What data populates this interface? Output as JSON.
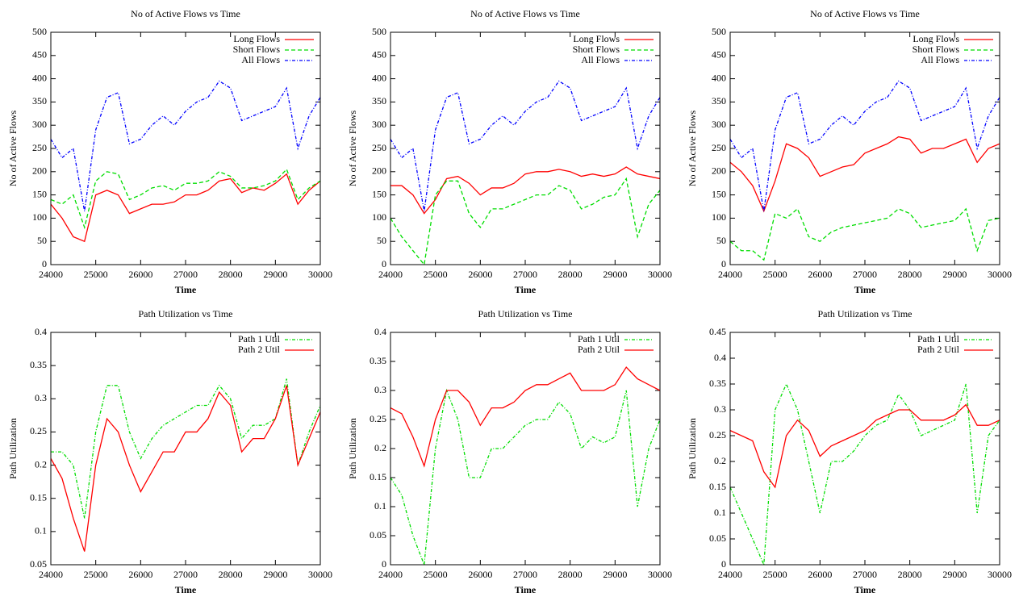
{
  "chart_data": [
    {
      "type": "line",
      "title": "No of Active Flows vs Time",
      "xlabel": "Time",
      "ylabel": "No of Active Flows",
      "x": [
        24000,
        24250,
        24500,
        24750,
        25000,
        25250,
        25500,
        25750,
        26000,
        26250,
        26500,
        26750,
        27000,
        27250,
        27500,
        27750,
        28000,
        28250,
        28500,
        28750,
        29000,
        29250,
        29500,
        29750,
        30000
      ],
      "xlim": [
        24000,
        30000
      ],
      "xticks": [
        24000,
        25000,
        26000,
        27000,
        28000,
        29000,
        30000
      ],
      "ylim": [
        0,
        500
      ],
      "yticks": [
        0,
        50,
        100,
        150,
        200,
        250,
        300,
        350,
        400,
        450,
        500
      ],
      "legend": "upper right",
      "series": [
        {
          "name": "Long Flows",
          "color": "#ff0000",
          "dash": "solid",
          "values": [
            130,
            100,
            60,
            50,
            150,
            160,
            150,
            110,
            120,
            130,
            130,
            135,
            150,
            150,
            160,
            180,
            185,
            155,
            165,
            160,
            175,
            195,
            130,
            160,
            180
          ]
        },
        {
          "name": "Short Flows",
          "color": "#00dd00",
          "dash": "dashed",
          "values": [
            140,
            130,
            150,
            80,
            180,
            200,
            195,
            140,
            150,
            165,
            170,
            160,
            175,
            175,
            180,
            200,
            190,
            165,
            165,
            170,
            180,
            205,
            140,
            165,
            180
          ]
        },
        {
          "name": "All Flows",
          "color": "#0000ff",
          "dash": "dashdot",
          "values": [
            270,
            230,
            250,
            115,
            290,
            360,
            370,
            260,
            270,
            300,
            320,
            300,
            330,
            350,
            360,
            395,
            380,
            310,
            320,
            330,
            340,
            380,
            250,
            320,
            360
          ]
        }
      ]
    },
    {
      "type": "line",
      "title": "No of Active Flows vs Time",
      "xlabel": "Time",
      "ylabel": "No of Active Flows",
      "x": [
        24000,
        24250,
        24500,
        24750,
        25000,
        25250,
        25500,
        25750,
        26000,
        26250,
        26500,
        26750,
        27000,
        27250,
        27500,
        27750,
        28000,
        28250,
        28500,
        28750,
        29000,
        29250,
        29500,
        29750,
        30000
      ],
      "xlim": [
        24000,
        30000
      ],
      "xticks": [
        24000,
        25000,
        26000,
        27000,
        28000,
        29000,
        30000
      ],
      "ylim": [
        0,
        500
      ],
      "yticks": [
        0,
        50,
        100,
        150,
        200,
        250,
        300,
        350,
        400,
        450,
        500
      ],
      "legend": "upper right",
      "series": [
        {
          "name": "Long Flows",
          "color": "#ff0000",
          "dash": "solid",
          "values": [
            170,
            170,
            150,
            110,
            140,
            185,
            190,
            175,
            150,
            165,
            165,
            175,
            195,
            200,
            200,
            205,
            200,
            190,
            195,
            190,
            195,
            210,
            195,
            190,
            185
          ]
        },
        {
          "name": "Short Flows",
          "color": "#00dd00",
          "dash": "dashed",
          "values": [
            100,
            60,
            30,
            0,
            150,
            180,
            180,
            110,
            80,
            120,
            120,
            130,
            140,
            150,
            150,
            170,
            160,
            120,
            130,
            145,
            150,
            185,
            60,
            130,
            160
          ]
        },
        {
          "name": "All Flows",
          "color": "#0000ff",
          "dash": "dashdot",
          "values": [
            270,
            230,
            250,
            115,
            290,
            360,
            370,
            260,
            270,
            300,
            320,
            300,
            330,
            350,
            360,
            395,
            380,
            310,
            320,
            330,
            340,
            380,
            250,
            320,
            360
          ]
        }
      ]
    },
    {
      "type": "line",
      "title": "No of Active Flows vs Time",
      "xlabel": "Time",
      "ylabel": "No of Active Flows",
      "x": [
        24000,
        24250,
        24500,
        24750,
        25000,
        25250,
        25500,
        25750,
        26000,
        26250,
        26500,
        26750,
        27000,
        27250,
        27500,
        27750,
        28000,
        28250,
        28500,
        28750,
        29000,
        29250,
        29500,
        29750,
        30000
      ],
      "xlim": [
        24000,
        30000
      ],
      "xticks": [
        24000,
        25000,
        26000,
        27000,
        28000,
        29000,
        30000
      ],
      "ylim": [
        0,
        500
      ],
      "yticks": [
        0,
        50,
        100,
        150,
        200,
        250,
        300,
        350,
        400,
        450,
        500
      ],
      "legend": "upper right",
      "series": [
        {
          "name": "Long Flows",
          "color": "#ff0000",
          "dash": "solid",
          "values": [
            220,
            200,
            170,
            115,
            180,
            260,
            250,
            230,
            190,
            200,
            210,
            215,
            240,
            250,
            260,
            275,
            270,
            240,
            250,
            250,
            260,
            270,
            220,
            250,
            260
          ]
        },
        {
          "name": "Short Flows",
          "color": "#00dd00",
          "dash": "dashed",
          "values": [
            50,
            30,
            30,
            10,
            110,
            100,
            120,
            60,
            50,
            70,
            80,
            85,
            90,
            95,
            100,
            120,
            110,
            80,
            85,
            90,
            95,
            120,
            30,
            95,
            100
          ]
        },
        {
          "name": "All Flows",
          "color": "#0000ff",
          "dash": "dashdot",
          "values": [
            270,
            230,
            250,
            115,
            290,
            360,
            370,
            260,
            270,
            300,
            320,
            300,
            330,
            350,
            360,
            395,
            380,
            310,
            320,
            330,
            340,
            380,
            250,
            320,
            360
          ]
        }
      ]
    },
    {
      "type": "line",
      "title": "Path Utilization vs Time",
      "xlabel": "Time",
      "ylabel": "Path Utilization",
      "x": [
        24000,
        24250,
        24500,
        24750,
        25000,
        25250,
        25500,
        25750,
        26000,
        26250,
        26500,
        26750,
        27000,
        27250,
        27500,
        27750,
        28000,
        28250,
        28500,
        28750,
        29000,
        29250,
        29500,
        29750,
        30000
      ],
      "xlim": [
        24000,
        30000
      ],
      "xticks": [
        24000,
        25000,
        26000,
        27000,
        28000,
        29000,
        30000
      ],
      "ylim": [
        0.05,
        0.4
      ],
      "yticks": [
        0.05,
        0.1,
        0.15,
        0.2,
        0.25,
        0.3,
        0.35,
        0.4
      ],
      "legend": "upper right",
      "series": [
        {
          "name": "Path 1 Util",
          "color": "#00dd00",
          "dash": "dashdot",
          "values": [
            0.22,
            0.22,
            0.2,
            0.12,
            0.25,
            0.32,
            0.32,
            0.25,
            0.21,
            0.24,
            0.26,
            0.27,
            0.28,
            0.29,
            0.29,
            0.32,
            0.3,
            0.24,
            0.26,
            0.26,
            0.27,
            0.33,
            0.2,
            0.25,
            0.29
          ]
        },
        {
          "name": "Path 2 Util",
          "color": "#ff0000",
          "dash": "solid",
          "values": [
            0.21,
            0.18,
            0.12,
            0.07,
            0.2,
            0.27,
            0.25,
            0.2,
            0.16,
            0.19,
            0.22,
            0.22,
            0.25,
            0.25,
            0.27,
            0.31,
            0.29,
            0.22,
            0.24,
            0.24,
            0.27,
            0.32,
            0.2,
            0.24,
            0.28
          ]
        }
      ]
    },
    {
      "type": "line",
      "title": "Path Utilization vs Time",
      "xlabel": "Time",
      "ylabel": "Path Utilization",
      "x": [
        24000,
        24250,
        24500,
        24750,
        25000,
        25250,
        25500,
        25750,
        26000,
        26250,
        26500,
        26750,
        27000,
        27250,
        27500,
        27750,
        28000,
        28250,
        28500,
        28750,
        29000,
        29250,
        29500,
        29750,
        30000
      ],
      "xlim": [
        24000,
        30000
      ],
      "xticks": [
        24000,
        25000,
        26000,
        27000,
        28000,
        29000,
        30000
      ],
      "ylim": [
        0,
        0.4
      ],
      "yticks": [
        0,
        0.05,
        0.1,
        0.15,
        0.2,
        0.25,
        0.3,
        0.35,
        0.4
      ],
      "legend": "upper right",
      "series": [
        {
          "name": "Path 1 Util",
          "color": "#00dd00",
          "dash": "dashdot",
          "values": [
            0.15,
            0.12,
            0.05,
            0,
            0.2,
            0.3,
            0.25,
            0.15,
            0.15,
            0.2,
            0.2,
            0.22,
            0.24,
            0.25,
            0.25,
            0.28,
            0.26,
            0.2,
            0.22,
            0.21,
            0.22,
            0.3,
            0.1,
            0.2,
            0.25
          ]
        },
        {
          "name": "Path 2 Util",
          "color": "#ff0000",
          "dash": "solid",
          "values": [
            0.27,
            0.26,
            0.22,
            0.17,
            0.25,
            0.3,
            0.3,
            0.28,
            0.24,
            0.27,
            0.27,
            0.28,
            0.3,
            0.31,
            0.31,
            0.32,
            0.33,
            0.3,
            0.3,
            0.3,
            0.31,
            0.34,
            0.32,
            0.31,
            0.3
          ]
        }
      ]
    },
    {
      "type": "line",
      "title": "Path Utilization vs Time",
      "xlabel": "Time",
      "ylabel": "Path Utilization",
      "x": [
        24000,
        24250,
        24500,
        24750,
        25000,
        25250,
        25500,
        25750,
        26000,
        26250,
        26500,
        26750,
        27000,
        27250,
        27500,
        27750,
        28000,
        28250,
        28500,
        28750,
        29000,
        29250,
        29500,
        29750,
        30000
      ],
      "xlim": [
        24000,
        30000
      ],
      "xticks": [
        24000,
        25000,
        26000,
        27000,
        28000,
        29000,
        30000
      ],
      "ylim": [
        0,
        0.45
      ],
      "yticks": [
        0,
        0.05,
        0.1,
        0.15,
        0.2,
        0.25,
        0.3,
        0.35,
        0.4,
        0.45
      ],
      "legend": "upper right",
      "series": [
        {
          "name": "Path 1 Util",
          "color": "#00dd00",
          "dash": "dashdot",
          "values": [
            0.15,
            0.1,
            0.05,
            0,
            0.3,
            0.35,
            0.3,
            0.2,
            0.1,
            0.2,
            0.2,
            0.22,
            0.25,
            0.27,
            0.28,
            0.33,
            0.3,
            0.25,
            0.26,
            0.27,
            0.28,
            0.35,
            0.1,
            0.25,
            0.28
          ]
        },
        {
          "name": "Path 2 Util",
          "color": "#ff0000",
          "dash": "solid",
          "values": [
            0.26,
            0.25,
            0.24,
            0.18,
            0.15,
            0.25,
            0.28,
            0.26,
            0.21,
            0.23,
            0.24,
            0.25,
            0.26,
            0.28,
            0.29,
            0.3,
            0.3,
            0.28,
            0.28,
            0.28,
            0.29,
            0.31,
            0.27,
            0.27,
            0.28
          ]
        }
      ]
    }
  ]
}
